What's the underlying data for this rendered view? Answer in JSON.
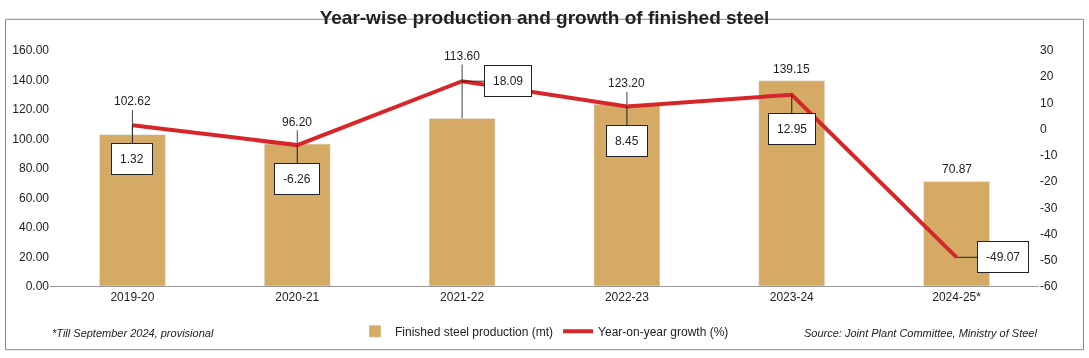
{
  "chart_data": {
    "type": "bar",
    "title": "Year-wise production and growth of finished steel",
    "categories": [
      "2019-20",
      "2020-21",
      "2021-22",
      "2022-23",
      "2023-24",
      "2024-25*"
    ],
    "series": [
      {
        "name": "Finished steel production (mt)",
        "type": "bar",
        "color": "#d4aa65",
        "values": [
          102.62,
          96.2,
          113.6,
          123.2,
          139.15,
          70.87
        ],
        "value_labels": [
          "102.62",
          "96.20",
          "113.60",
          "123.20",
          "139.15",
          "70.87"
        ]
      },
      {
        "name": "Year-on-year growth (%)",
        "type": "line",
        "axis": "y2",
        "color": "#d7262a",
        "values": [
          1.32,
          -6.26,
          18.09,
          8.45,
          12.95,
          -49.07
        ],
        "value_labels": [
          "1.32",
          "-6.26",
          "18.09",
          "8.45",
          "12.95",
          "-49.07"
        ]
      }
    ],
    "ylim": [
      0,
      160
    ],
    "yticks": [
      {
        "value": 0,
        "label": "0.00"
      },
      {
        "value": 20,
        "label": "20.00"
      },
      {
        "value": 40,
        "label": "40.00"
      },
      {
        "value": 60,
        "label": "60.00"
      },
      {
        "value": 80,
        "label": "80.00"
      },
      {
        "value": 100,
        "label": "100.00"
      },
      {
        "value": 120,
        "label": "120.00"
      },
      {
        "value": 140,
        "label": "140.00"
      },
      {
        "value": 160,
        "label": "160.00"
      }
    ],
    "y2lim": [
      -60,
      30
    ],
    "y2ticks": [
      -60,
      -50,
      -40,
      -30,
      -20,
      -10,
      0,
      10,
      20,
      30
    ],
    "grid": false,
    "legend": "bottom",
    "marker": "none",
    "line_style": "solid",
    "annotations": [
      "*Till September 2024, provisional",
      "Source: Joint Plant Committee, Ministry of Steel"
    ]
  }
}
